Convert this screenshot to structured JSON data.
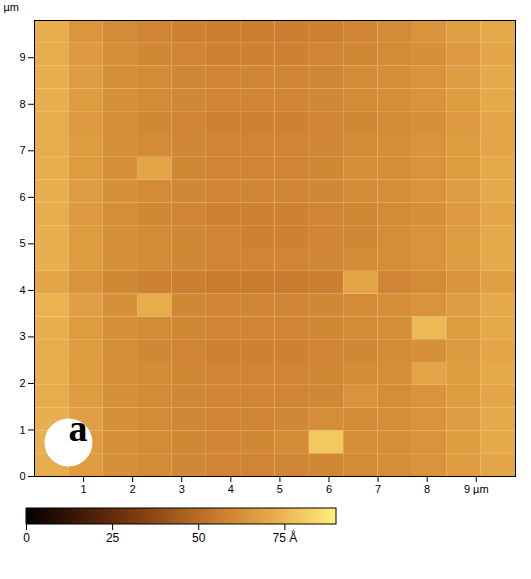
{
  "chart_data": {
    "type": "heatmap",
    "annotation": "a",
    "y_label": "µm",
    "xlim": [
      0,
      9.8
    ],
    "ylim": [
      0,
      9.8
    ],
    "xticks": [
      1,
      2,
      3,
      4,
      5,
      6,
      7,
      8,
      {
        "value": 9,
        "label": "9 µm"
      }
    ],
    "yticks": [
      0,
      1,
      2,
      3,
      4,
      5,
      6,
      7,
      8,
      9
    ],
    "x": [
      0.35,
      1.05,
      1.75,
      2.45,
      3.15,
      3.85,
      4.55,
      5.25,
      5.95,
      6.65,
      7.35,
      8.05,
      8.75,
      9.45
    ],
    "y": [
      0.245,
      0.735,
      1.225,
      1.715,
      2.205,
      2.695,
      3.185,
      3.675,
      4.165,
      4.655,
      5.145,
      5.635,
      6.125,
      6.615,
      7.105,
      7.595,
      8.085,
      8.575,
      9.065,
      9.555
    ],
    "z": [
      [
        72,
        67,
        63,
        61,
        60,
        59,
        59,
        59,
        60,
        61,
        62,
        64,
        67,
        70
      ],
      [
        73,
        67,
        63,
        61,
        60,
        59,
        60,
        61,
        80,
        62,
        62,
        64,
        67,
        71
      ],
      [
        73,
        68,
        63,
        61,
        60,
        59,
        59,
        60,
        62,
        61,
        62,
        64,
        67,
        71
      ],
      [
        72,
        67,
        63,
        61,
        60,
        59,
        59,
        59,
        60,
        64,
        62,
        64,
        67,
        70
      ],
      [
        73,
        67,
        63,
        61,
        60,
        59,
        59,
        59,
        60,
        61,
        62,
        70,
        67,
        71
      ],
      [
        72,
        67,
        62,
        60,
        59,
        58,
        58,
        58,
        59,
        60,
        61,
        63,
        66,
        70
      ],
      [
        73,
        67,
        63,
        61,
        60,
        59,
        59,
        59,
        60,
        61,
        62,
        76,
        67,
        71
      ],
      [
        74,
        68,
        63,
        72,
        60,
        59,
        59,
        59,
        60,
        61,
        62,
        64,
        67,
        71
      ],
      [
        70,
        64,
        60,
        58,
        57,
        56,
        56,
        56,
        57,
        70,
        59,
        61,
        64,
        68
      ],
      [
        73,
        67,
        63,
        61,
        60,
        59,
        59,
        59,
        60,
        61,
        62,
        64,
        67,
        71
      ],
      [
        73,
        67,
        63,
        61,
        60,
        59,
        58,
        58,
        59,
        60,
        62,
        64,
        67,
        71
      ],
      [
        72,
        66,
        62,
        60,
        59,
        58,
        58,
        58,
        59,
        60,
        61,
        63,
        66,
        70
      ],
      [
        73,
        67,
        63,
        61,
        60,
        59,
        59,
        59,
        60,
        61,
        62,
        64,
        67,
        71
      ],
      [
        73,
        67,
        63,
        70,
        60,
        59,
        59,
        59,
        60,
        63,
        62,
        64,
        67,
        71
      ],
      [
        72,
        67,
        63,
        61,
        60,
        59,
        59,
        59,
        60,
        61,
        62,
        64,
        67,
        70
      ],
      [
        72,
        66,
        62,
        60,
        59,
        58,
        58,
        58,
        59,
        60,
        61,
        63,
        66,
        70
      ],
      [
        73,
        67,
        63,
        61,
        60,
        59,
        59,
        59,
        60,
        61,
        62,
        64,
        67,
        71
      ],
      [
        73,
        67,
        63,
        61,
        60,
        59,
        59,
        59,
        60,
        61,
        62,
        64,
        67,
        71
      ],
      [
        72,
        66,
        62,
        60,
        59,
        58,
        58,
        58,
        59,
        60,
        61,
        63,
        66,
        70
      ],
      [
        72,
        65,
        61,
        59,
        58,
        57,
        57,
        57,
        58,
        59,
        61,
        64,
        68,
        71
      ]
    ],
    "colorbar": {
      "range": [
        0,
        90
      ],
      "ticks": [
        0,
        25,
        50,
        {
          "value": 75,
          "label": "75 Å"
        }
      ]
    },
    "grid": false
  }
}
